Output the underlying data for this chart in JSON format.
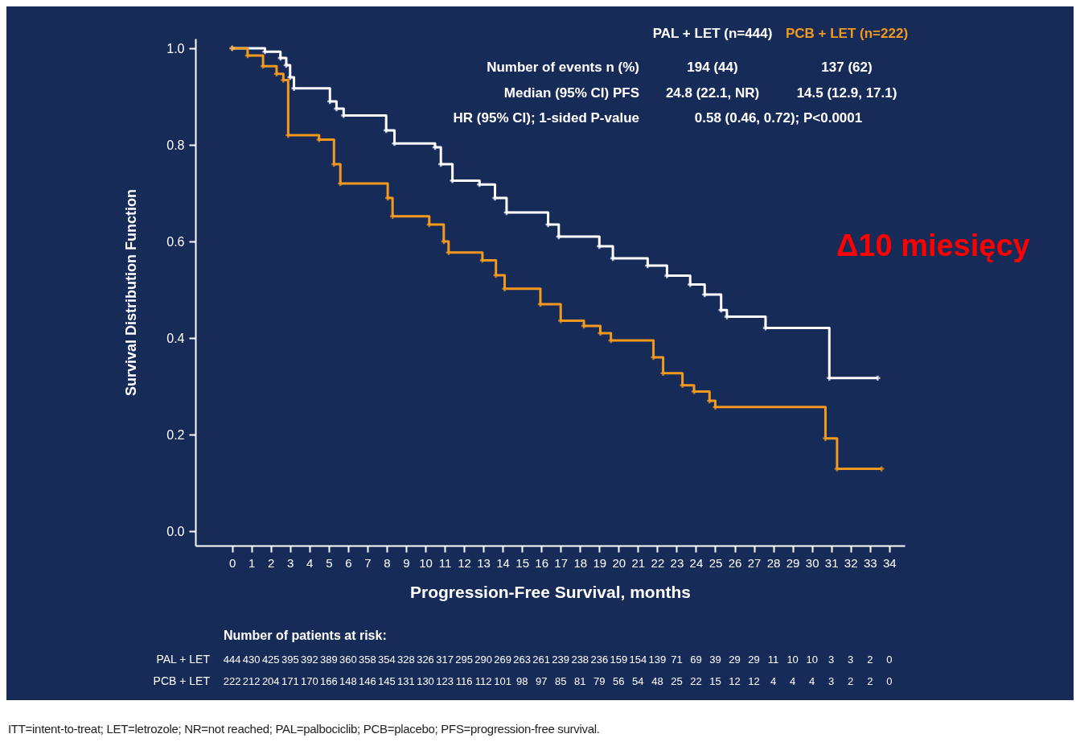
{
  "chart_data": {
    "type": "step",
    "xlabel": "Progression-Free Survival, months",
    "ylabel": "Survival Distribution Function",
    "xlim": [
      -1.9,
      34.8
    ],
    "ylim": [
      -0.03,
      1.02
    ],
    "xticks": [
      0,
      1,
      2,
      3,
      4,
      5,
      6,
      7,
      8,
      9,
      10,
      11,
      12,
      13,
      14,
      15,
      16,
      17,
      18,
      19,
      20,
      21,
      22,
      23,
      24,
      25,
      26,
      27,
      28,
      29,
      30,
      31,
      32,
      33,
      34
    ],
    "yticks": [
      {
        "value": 0,
        "label": "0.0"
      },
      {
        "value": 0.2,
        "label": "0.2"
      },
      {
        "value": 0.4,
        "label": "0.4"
      },
      {
        "value": 0.6,
        "label": "0.6"
      },
      {
        "value": 0.8,
        "label": "0.8"
      },
      {
        "value": 1,
        "label": "1.0"
      }
    ],
    "grid": false,
    "legend": "top right",
    "marker": "cross",
    "line_style": "solid",
    "series": [
      {
        "name": "PAL + LET (n=444)",
        "color": "#ffffff",
        "x": [
          0,
          1.7,
          2.5,
          2.8,
          3.0,
          3.2,
          5.06,
          5.4,
          5.77,
          7.97,
          8.4,
          10.5,
          10.8,
          11.4,
          12.8,
          13.6,
          14.2,
          16.35,
          16.9,
          19.0,
          19.7,
          21.5,
          22.5,
          23.7,
          24.45,
          25.3,
          25.6,
          27.6,
          30.9,
          33.4
        ],
        "values": [
          1.0,
          0.993,
          0.98,
          0.965,
          0.94,
          0.917,
          0.89,
          0.875,
          0.861,
          0.83,
          0.803,
          0.795,
          0.76,
          0.726,
          0.718,
          0.69,
          0.66,
          0.635,
          0.61,
          0.59,
          0.565,
          0.55,
          0.529,
          0.511,
          0.49,
          0.458,
          0.444,
          0.421,
          0.317,
          0.317
        ]
      },
      {
        "name": "PCB + LET (n=222)",
        "color": "#f39a1e",
        "x": [
          0,
          0.8,
          1.6,
          2.3,
          2.65,
          2.9,
          4.5,
          5.27,
          5.6,
          8.05,
          8.3,
          10.2,
          10.95,
          11.2,
          12.95,
          13.65,
          14.1,
          15.95,
          17.0,
          18.2,
          19.05,
          19.6,
          21.8,
          22.3,
          23.3,
          23.9,
          24.7,
          25.0,
          30.7,
          31.3,
          33.6
        ],
        "values": [
          1.0,
          0.985,
          0.963,
          0.947,
          0.934,
          0.82,
          0.811,
          0.76,
          0.72,
          0.69,
          0.652,
          0.635,
          0.6,
          0.577,
          0.561,
          0.53,
          0.502,
          0.47,
          0.436,
          0.425,
          0.41,
          0.395,
          0.36,
          0.327,
          0.302,
          0.289,
          0.27,
          0.257,
          0.192,
          0.129,
          0.129
        ]
      }
    ],
    "annotations": [
      "Number of events n (%)",
      "194 (44)",
      "137 (62)",
      "Median (95% CI) PFS",
      "24.8 (22.1, NR)",
      "14.5 (12.9, 17.1)",
      "HR (95% CI); 1-sided P-value",
      "0.58 (0.46, 0.72); P<0.0001",
      "Δ10 miesięcy",
      "Number of patients at risk:",
      "PAL + LET",
      "444 430 425 395 392 389 360 358 354 328 326 317 295 290 269 263 261 239 238 236 159 154 139 71 69 39 29 29 11 10 10 3 3 2 0",
      "PCB + LET",
      "222 212 204 171 170 166 148 146 145 131 130 123 116 112 101 98 97 85 81 79 56 54 48 25 22 15 12 12 4 4 4 3 2 2 0",
      "ITT=intent-to-treat; LET=letrozole; NR=not reached; PAL=palbociclib; PCB=placebo; PFS=progression-free survival."
    ]
  }
}
